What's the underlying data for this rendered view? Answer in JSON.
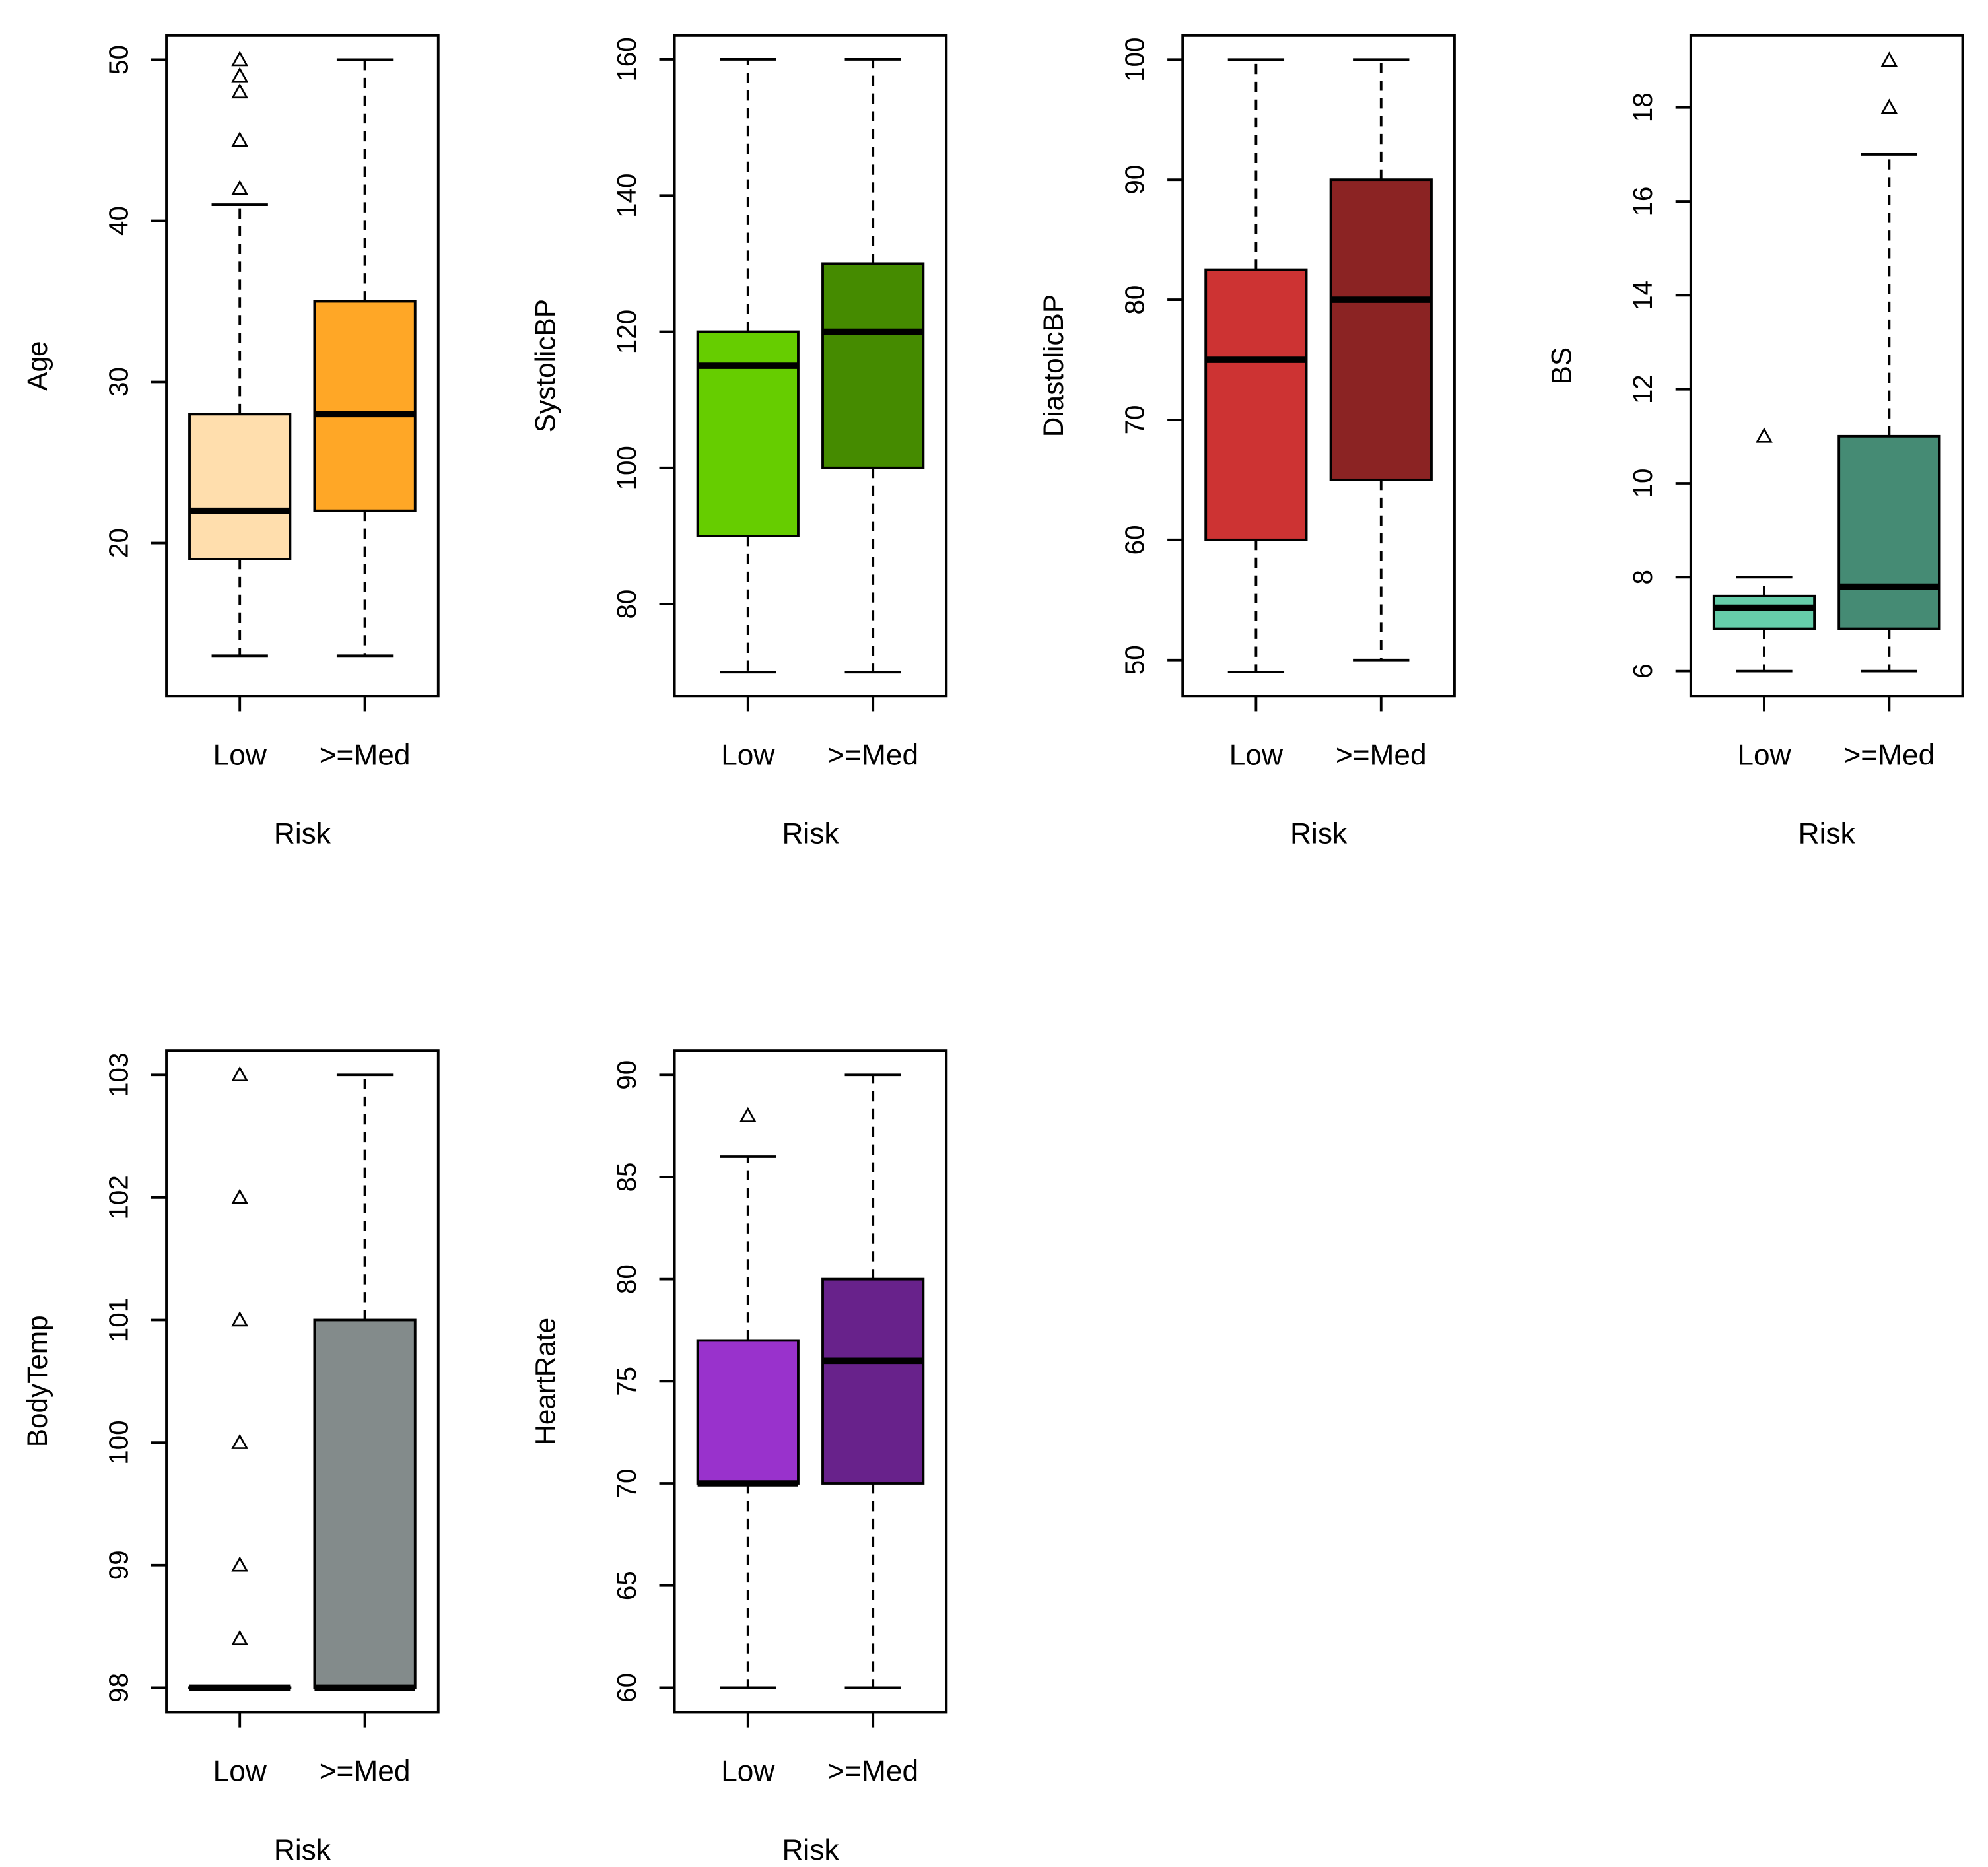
{
  "chart_data": [
    {
      "type": "boxplot",
      "ylabel": "Age",
      "xlabel": "Risk",
      "categories": [
        "Low",
        ">=Med"
      ],
      "ylim": [
        10.5,
        51.5
      ],
      "yticks": [
        20,
        30,
        40,
        50
      ],
      "colors": [
        "#FFDEAD",
        "#FFA726"
      ],
      "boxes": [
        {
          "category": "Low",
          "whisker_low": 13,
          "q1": 19,
          "median": 22,
          "q3": 28,
          "whisker_high": 41,
          "outliers": [
            42,
            45,
            48,
            49,
            50
          ]
        },
        {
          "category": ">=Med",
          "whisker_low": 13,
          "q1": 22,
          "median": 28,
          "q3": 35,
          "whisker_high": 50,
          "outliers": []
        }
      ]
    },
    {
      "type": "boxplot",
      "ylabel": "SystolicBP",
      "xlabel": "Risk",
      "categories": [
        "Low",
        ">=Med"
      ],
      "ylim": [
        66.5,
        163.5
      ],
      "yticks": [
        80,
        100,
        120,
        140,
        160
      ],
      "colors": [
        "#66CD00",
        "#458B00"
      ],
      "boxes": [
        {
          "category": "Low",
          "whisker_low": 70,
          "q1": 90,
          "median": 115,
          "q3": 120,
          "whisker_high": 160,
          "outliers": []
        },
        {
          "category": ">=Med",
          "whisker_low": 70,
          "q1": 100,
          "median": 120,
          "q3": 130,
          "whisker_high": 160,
          "outliers": []
        }
      ]
    },
    {
      "type": "boxplot",
      "ylabel": "DiastolicBP",
      "xlabel": "Risk",
      "categories": [
        "Low",
        ">=Med"
      ],
      "ylim": [
        47,
        102
      ],
      "yticks": [
        50,
        60,
        70,
        80,
        90,
        100
      ],
      "colors": [
        "#CD3333",
        "#8B2323"
      ],
      "boxes": [
        {
          "category": "Low",
          "whisker_low": 49,
          "q1": 60,
          "median": 75,
          "q3": 82.5,
          "whisker_high": 100,
          "outliers": []
        },
        {
          "category": ">=Med",
          "whisker_low": 50,
          "q1": 65,
          "median": 80,
          "q3": 90,
          "whisker_high": 100,
          "outliers": []
        }
      ]
    },
    {
      "type": "boxplot",
      "ylabel": "BS",
      "xlabel": "Risk",
      "categories": [
        "Low",
        ">=Med"
      ],
      "ylim": [
        5.47,
        19.53
      ],
      "yticks": [
        6,
        8,
        10,
        12,
        14,
        16,
        18
      ],
      "colors": [
        "#66CDAA",
        "#458B74"
      ],
      "boxes": [
        {
          "category": "Low",
          "whisker_low": 6,
          "q1": 6.9,
          "median": 7.35,
          "q3": 7.6,
          "whisker_high": 8,
          "outliers": [
            11
          ]
        },
        {
          "category": ">=Med",
          "whisker_low": 6,
          "q1": 6.9,
          "median": 7.8,
          "q3": 11,
          "whisker_high": 17,
          "outliers": [
            18,
            19
          ]
        }
      ]
    },
    {
      "type": "boxplot",
      "ylabel": "BodyTemp",
      "xlabel": "Risk",
      "categories": [
        "Low",
        ">=Med"
      ],
      "ylim": [
        97.8,
        103.2
      ],
      "yticks": [
        98,
        99,
        100,
        101,
        102,
        103
      ],
      "colors": [
        "#FFFFFF",
        "#838B8B"
      ],
      "boxes": [
        {
          "category": "Low",
          "whisker_low": 98,
          "q1": 98,
          "median": 98,
          "q3": 98,
          "whisker_high": 98,
          "outliers": [
            98.4,
            99,
            100,
            101,
            102,
            103
          ]
        },
        {
          "category": ">=Med",
          "whisker_low": 98,
          "q1": 98,
          "median": 98,
          "q3": 101,
          "whisker_high": 103,
          "outliers": []
        }
      ]
    },
    {
      "type": "boxplot",
      "ylabel": "HeartRate",
      "xlabel": "Risk",
      "categories": [
        "Low",
        ">=Med"
      ],
      "ylim": [
        58.8,
        91.2
      ],
      "yticks": [
        60,
        65,
        70,
        75,
        80,
        85,
        90
      ],
      "colors": [
        "#9932CC",
        "#68228B"
      ],
      "boxes": [
        {
          "category": "Low",
          "whisker_low": 60,
          "q1": 70,
          "median": 70,
          "q3": 77,
          "whisker_high": 86,
          "outliers": [
            88
          ]
        },
        {
          "category": ">=Med",
          "whisker_low": 60,
          "q1": 70,
          "median": 76,
          "q3": 80,
          "whisker_high": 90,
          "outliers": []
        }
      ]
    }
  ]
}
